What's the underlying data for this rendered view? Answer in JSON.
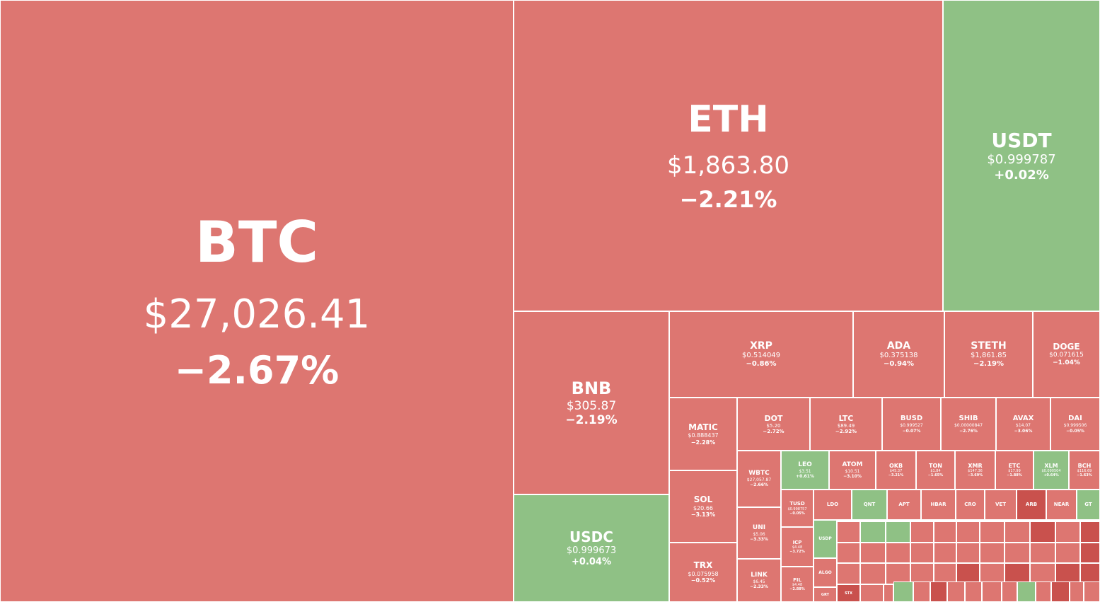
{
  "tiles": [
    {
      "key": "btc",
      "symbol": "BTC",
      "price": "$27,026.41",
      "change": "−2.67%",
      "trend": "down"
    },
    {
      "key": "eth",
      "symbol": "ETH",
      "price": "$1,863.80",
      "change": "−2.21%",
      "trend": "down"
    },
    {
      "key": "usdt",
      "symbol": "USDT",
      "price": "$0.999787",
      "change": "+0.02%",
      "trend": "up"
    },
    {
      "key": "bnb",
      "symbol": "BNB",
      "price": "$305.87",
      "change": "−2.19%",
      "trend": "down"
    },
    {
      "key": "usdc",
      "symbol": "USDC",
      "price": "$0.999673",
      "change": "+0.04%",
      "trend": "up"
    },
    {
      "key": "xrp",
      "symbol": "XRP",
      "price": "$0.514049",
      "change": "−0.86%",
      "trend": "down"
    },
    {
      "key": "ada",
      "symbol": "ADA",
      "price": "$0.375138",
      "change": "−0.94%",
      "trend": "down"
    },
    {
      "key": "steth",
      "symbol": "STETH",
      "price": "$1,861.85",
      "change": "−2.19%",
      "trend": "down"
    },
    {
      "key": "doge",
      "symbol": "DOGE",
      "price": "$0.071615",
      "change": "−1.04%",
      "trend": "down"
    },
    {
      "key": "matic",
      "symbol": "MATIC",
      "price": "$0.888437",
      "change": "−2.28%",
      "trend": "down"
    },
    {
      "key": "dot",
      "symbol": "DOT",
      "price": "$5.20",
      "change": "−2.72%",
      "trend": "down"
    },
    {
      "key": "ltc",
      "symbol": "LTC",
      "price": "$89.49",
      "change": "−2.92%",
      "trend": "down"
    },
    {
      "key": "busd",
      "symbol": "BUSD",
      "price": "$0.999527",
      "change": "−0.07%",
      "trend": "down"
    },
    {
      "key": "shib",
      "symbol": "SHIB",
      "price": "$0.00000847",
      "change": "−2.76%",
      "trend": "down"
    },
    {
      "key": "avax",
      "symbol": "AVAX",
      "price": "$14.07",
      "change": "−3.06%",
      "trend": "down"
    },
    {
      "key": "dai",
      "symbol": "DAI",
      "price": "$0.999506",
      "change": "−0.05%",
      "trend": "down"
    },
    {
      "key": "sol",
      "symbol": "SOL",
      "price": "$20.66",
      "change": "−3.13%",
      "trend": "down"
    },
    {
      "key": "trx",
      "symbol": "TRX",
      "price": "$0.075958",
      "change": "−0.52%",
      "trend": "down"
    },
    {
      "key": "wbtc",
      "symbol": "WBTC",
      "price": "$27,057.87",
      "change": "−2.66%",
      "trend": "down"
    },
    {
      "key": "leo",
      "symbol": "LEO",
      "price": "$3.51",
      "change": "+0.61%",
      "trend": "up"
    },
    {
      "key": "atom",
      "symbol": "ATOM",
      "price": "$10.51",
      "change": "−3.10%",
      "trend": "down"
    },
    {
      "key": "okb",
      "symbol": "OKB",
      "price": "$45.37",
      "change": "−3.21%",
      "trend": "down"
    },
    {
      "key": "ton",
      "symbol": "TON",
      "price": "$1.84",
      "change": "−1.65%",
      "trend": "down"
    },
    {
      "key": "xmr",
      "symbol": "XMR",
      "price": "$147.36",
      "change": "−3.69%",
      "trend": "down"
    },
    {
      "key": "etc",
      "symbol": "ETC",
      "price": "$17.99",
      "change": "−1.88%",
      "trend": "down"
    },
    {
      "key": "xlm",
      "symbol": "XLM",
      "price": "$0.090504",
      "change": "+0.64%",
      "trend": "up"
    },
    {
      "key": "bch",
      "symbol": "BCH",
      "price": "$116.69",
      "change": "−1.63%",
      "trend": "down"
    },
    {
      "key": "uni",
      "symbol": "UNI",
      "price": "$5.06",
      "change": "−3.33%",
      "trend": "down"
    },
    {
      "key": "link",
      "symbol": "LINK",
      "price": "$6.45",
      "change": "−2.33%",
      "trend": "down"
    },
    {
      "key": "tusd",
      "symbol": "TUSD",
      "price": "$0.998757",
      "change": "−0.05%",
      "trend": "down"
    },
    {
      "key": "icp",
      "symbol": "ICP",
      "price": "$4.48",
      "change": "−3.72%",
      "trend": "down"
    },
    {
      "key": "fil",
      "symbol": "FIL",
      "price": "$4.48",
      "change": "−2.88%",
      "trend": "down"
    },
    {
      "key": "ldo",
      "symbol": "LDO",
      "price": "",
      "change": "",
      "trend": "down"
    },
    {
      "key": "qnt",
      "symbol": "QNT",
      "price": "",
      "change": "",
      "trend": "up"
    },
    {
      "key": "apt",
      "symbol": "APT",
      "price": "",
      "change": "",
      "trend": "down"
    },
    {
      "key": "hbar",
      "symbol": "HBAR",
      "price": "",
      "change": "",
      "trend": "down"
    },
    {
      "key": "cro",
      "symbol": "CRO",
      "price": "",
      "change": "",
      "trend": "down"
    },
    {
      "key": "vet",
      "symbol": "VET",
      "price": "",
      "change": "",
      "trend": "down"
    },
    {
      "key": "arb",
      "symbol": "ARB",
      "price": "",
      "change": "",
      "trend": "down-strong"
    },
    {
      "key": "near",
      "symbol": "NEAR",
      "price": "",
      "change": "",
      "trend": "down"
    },
    {
      "key": "gt",
      "symbol": "GT",
      "price": "",
      "change": "",
      "trend": "up"
    },
    {
      "key": "usdp",
      "symbol": "USDP",
      "price": "",
      "change": "",
      "trend": "up"
    },
    {
      "key": "algo",
      "symbol": "ALGO",
      "price": "",
      "change": "",
      "trend": "down"
    },
    {
      "key": "grt",
      "symbol": "GRT",
      "price": "",
      "change": "",
      "trend": "down"
    },
    {
      "key": "stx",
      "symbol": "STX",
      "price": "",
      "change": "",
      "trend": "down-strong"
    }
  ],
  "small_tiles": [
    {
      "key": "s1",
      "trend": "down"
    },
    {
      "key": "s2",
      "trend": "up"
    },
    {
      "key": "s3",
      "trend": "up"
    },
    {
      "key": "s4",
      "trend": "down"
    },
    {
      "key": "s5",
      "trend": "down"
    },
    {
      "key": "s6",
      "trend": "down"
    },
    {
      "key": "s7",
      "trend": "down"
    },
    {
      "key": "s8",
      "trend": "down"
    },
    {
      "key": "s9",
      "trend": "down-strong"
    },
    {
      "key": "s10",
      "trend": "down"
    },
    {
      "key": "s11",
      "trend": "down-strong"
    },
    {
      "key": "s12",
      "trend": "down"
    },
    {
      "key": "s13",
      "trend": "down"
    },
    {
      "key": "s14",
      "trend": "down"
    },
    {
      "key": "s15",
      "trend": "down"
    },
    {
      "key": "s16",
      "trend": "down"
    },
    {
      "key": "s17",
      "trend": "down"
    },
    {
      "key": "s18",
      "trend": "down"
    },
    {
      "key": "s19",
      "trend": "down"
    },
    {
      "key": "s20",
      "trend": "down"
    },
    {
      "key": "s21",
      "trend": "down"
    },
    {
      "key": "s22",
      "trend": "down-strong"
    },
    {
      "key": "s23",
      "trend": "down"
    },
    {
      "key": "s24",
      "trend": "down"
    },
    {
      "key": "s25",
      "trend": "down"
    },
    {
      "key": "s26",
      "trend": "down"
    },
    {
      "key": "s27",
      "trend": "down"
    },
    {
      "key": "s28",
      "trend": "down-strong"
    },
    {
      "key": "s29",
      "trend": "down"
    },
    {
      "key": "s30",
      "trend": "down-strong"
    },
    {
      "key": "s31",
      "trend": "down"
    },
    {
      "key": "s32",
      "trend": "down-strong"
    },
    {
      "key": "s33",
      "trend": "down-strong"
    },
    {
      "key": "s34",
      "trend": "down"
    },
    {
      "key": "s35",
      "trend": "down"
    },
    {
      "key": "s36",
      "trend": "up"
    },
    {
      "key": "s37",
      "trend": "down"
    },
    {
      "key": "s38",
      "trend": "down-strong"
    },
    {
      "key": "s39",
      "trend": "down"
    },
    {
      "key": "s40",
      "trend": "down"
    },
    {
      "key": "s41",
      "trend": "down"
    },
    {
      "key": "s42",
      "trend": "down"
    },
    {
      "key": "s43",
      "trend": "up"
    },
    {
      "key": "s44",
      "trend": "down"
    },
    {
      "key": "s45",
      "trend": "down-strong"
    },
    {
      "key": "s46",
      "trend": "down"
    },
    {
      "key": "s47",
      "trend": "down"
    },
    {
      "key": "s48",
      "trend": "up-strong"
    },
    {
      "key": "s49",
      "trend": "down"
    },
    {
      "key": "s50",
      "trend": "down-strong"
    },
    {
      "key": "s51",
      "trend": "down"
    },
    {
      "key": "s52",
      "trend": "down-strong"
    },
    {
      "key": "s53",
      "trend": "down"
    },
    {
      "key": "s54",
      "trend": "down-strong"
    },
    {
      "key": "s55",
      "trend": "down"
    }
  ]
}
